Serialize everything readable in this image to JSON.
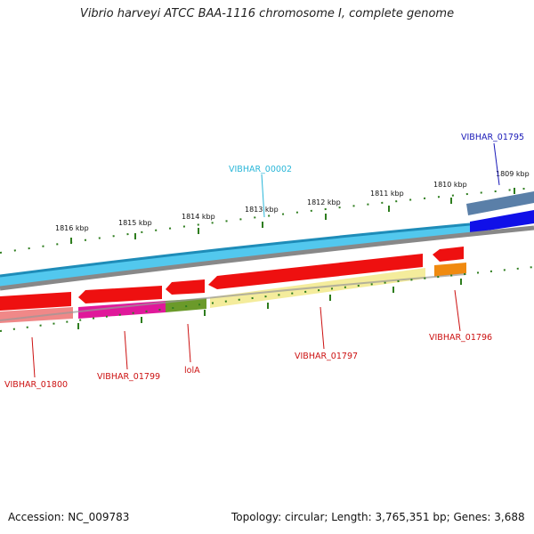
{
  "title": "Vibrio harveyi ATCC BAA-1116 chromosome I, complete genome",
  "footer": {
    "accession": "Accession: NC_009783",
    "summary": "Topology: circular; Length: 3,765,351 bp; Genes: 3,688"
  },
  "ticks": [
    "1816 kbp",
    "1815 kbp",
    "1814 kbp",
    "1813 kbp",
    "1812 kbp",
    "1811 kbp",
    "1810 kbp",
    "1809 kbp"
  ],
  "genes": {
    "VIBHAR_00002": "VIBHAR_00002",
    "VIBHAR_01795": "VIBHAR_01795",
    "VIBHAR_01796": "VIBHAR_01796",
    "VIBHAR_01797": "VIBHAR_01797",
    "lolA": "lolA",
    "VIBHAR_01799": "VIBHAR_01799",
    "VIBHAR_01800": "VIBHAR_01800"
  },
  "colors": {
    "cyan_label": "#29b6d8",
    "blue_label": "#1a1ab8",
    "red_label": "#cc1111",
    "tick_green": "#2e7d1e"
  }
}
